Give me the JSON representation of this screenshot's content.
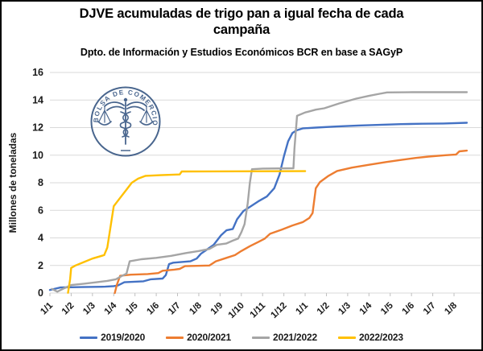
{
  "header": {
    "title": "DJVE acumuladas de trigo pan a igual fecha de cada campaña",
    "subtitle": "Dpto. de Información y Estudios Económicos BCR en base a SAGyP"
  },
  "logo": {
    "text": "BOLSA DE COMERCIO DE ROSARIO",
    "color": "#31517F"
  },
  "palette": {
    "grid": "#d9d9d9",
    "tick": "#bfbfbf",
    "axis_text": "#1a1a1a",
    "title_text": "#000000"
  },
  "chart_data": {
    "type": "line",
    "title": "DJVE acumuladas de trigo pan a igual fecha de cada campaña",
    "subtitle": "Dpto. de Información y Estudios Económicos BCR en base a SAGyP",
    "ylabel": "Millones de toneladas",
    "xlabel": "",
    "ylim": [
      0,
      16
    ],
    "yticks": [
      0,
      2,
      4,
      6,
      8,
      10,
      12,
      14,
      16
    ],
    "grid": "horizontal",
    "legend_position": "bottom",
    "x_axis_note": "x in month units: 0 = 1/1 of first year, 19 = 1/8 of second year",
    "xticklabels": [
      "1/1",
      "1/2",
      "1/3",
      "1/4",
      "1/5",
      "1/6",
      "1/7",
      "1/8",
      "1/9",
      "1/10",
      "1/11",
      "1/12",
      "1/1",
      "1/2",
      "1/3",
      "1/4",
      "1/5",
      "1/6",
      "1/7",
      "1/8"
    ],
    "series": [
      {
        "name": "2019/2020",
        "color": "#4472C4",
        "points": [
          [
            0,
            0.22
          ],
          [
            0.2,
            0.3
          ],
          [
            0.5,
            0.4
          ],
          [
            1.5,
            0.43
          ],
          [
            2.6,
            0.46
          ],
          [
            3.0,
            0.5
          ],
          [
            3.2,
            0.55
          ],
          [
            3.5,
            0.78
          ],
          [
            4.4,
            0.85
          ],
          [
            4.75,
            1.0
          ],
          [
            5.3,
            1.05
          ],
          [
            5.45,
            1.3
          ],
          [
            5.6,
            2.1
          ],
          [
            5.8,
            2.2
          ],
          [
            6.6,
            2.3
          ],
          [
            6.9,
            2.5
          ],
          [
            7.1,
            2.85
          ],
          [
            7.7,
            3.5
          ],
          [
            8.05,
            4.2
          ],
          [
            8.3,
            4.55
          ],
          [
            8.6,
            4.65
          ],
          [
            8.8,
            5.35
          ],
          [
            9.1,
            5.95
          ],
          [
            9.4,
            6.25
          ],
          [
            9.8,
            6.65
          ],
          [
            10.2,
            7.0
          ],
          [
            10.55,
            7.6
          ],
          [
            10.8,
            8.6
          ],
          [
            11.0,
            9.9
          ],
          [
            11.2,
            11.0
          ],
          [
            11.4,
            11.6
          ],
          [
            11.6,
            11.8
          ],
          [
            11.9,
            11.95
          ],
          [
            12.5,
            12.0
          ],
          [
            13.5,
            12.08
          ],
          [
            14.5,
            12.15
          ],
          [
            15.5,
            12.2
          ],
          [
            16.5,
            12.25
          ],
          [
            17.5,
            12.28
          ],
          [
            18.5,
            12.3
          ],
          [
            19.6,
            12.35
          ]
        ]
      },
      {
        "name": "2020/2021",
        "color": "#ED7D31",
        "points": [
          [
            3.05,
            0.0
          ],
          [
            3.15,
            0.6
          ],
          [
            3.3,
            1.25
          ],
          [
            3.8,
            1.33
          ],
          [
            4.6,
            1.38
          ],
          [
            5.1,
            1.45
          ],
          [
            5.3,
            1.62
          ],
          [
            5.85,
            1.7
          ],
          [
            6.1,
            1.75
          ],
          [
            6.35,
            1.95
          ],
          [
            7.5,
            2.0
          ],
          [
            7.8,
            2.3
          ],
          [
            8.3,
            2.55
          ],
          [
            8.7,
            2.75
          ],
          [
            9.0,
            3.05
          ],
          [
            9.4,
            3.4
          ],
          [
            9.8,
            3.7
          ],
          [
            10.1,
            3.95
          ],
          [
            10.35,
            4.3
          ],
          [
            10.9,
            4.6
          ],
          [
            11.4,
            4.9
          ],
          [
            11.9,
            5.15
          ],
          [
            12.2,
            5.45
          ],
          [
            12.35,
            5.8
          ],
          [
            12.5,
            7.6
          ],
          [
            12.7,
            8.05
          ],
          [
            13.1,
            8.5
          ],
          [
            13.5,
            8.85
          ],
          [
            14.2,
            9.1
          ],
          [
            15.0,
            9.3
          ],
          [
            15.8,
            9.5
          ],
          [
            16.5,
            9.65
          ],
          [
            17.2,
            9.8
          ],
          [
            17.8,
            9.9
          ],
          [
            18.6,
            10.0
          ],
          [
            19.1,
            10.05
          ],
          [
            19.25,
            10.28
          ],
          [
            19.6,
            10.33
          ]
        ]
      },
      {
        "name": "2021/2022",
        "color": "#A5A5A5",
        "points": [
          [
            0.1,
            0.3
          ],
          [
            0.35,
            0.1
          ],
          [
            0.6,
            0.3
          ],
          [
            1.0,
            0.58
          ],
          [
            1.6,
            0.68
          ],
          [
            2.2,
            0.78
          ],
          [
            2.7,
            0.88
          ],
          [
            3.1,
            1.0
          ],
          [
            3.4,
            1.25
          ],
          [
            3.6,
            1.4
          ],
          [
            3.75,
            2.3
          ],
          [
            4.3,
            2.45
          ],
          [
            5.0,
            2.55
          ],
          [
            5.7,
            2.7
          ],
          [
            6.4,
            2.9
          ],
          [
            7.0,
            3.05
          ],
          [
            7.5,
            3.2
          ],
          [
            7.85,
            3.5
          ],
          [
            8.3,
            3.6
          ],
          [
            8.6,
            3.8
          ],
          [
            8.85,
            3.95
          ],
          [
            9.0,
            4.4
          ],
          [
            9.15,
            5.0
          ],
          [
            9.3,
            6.5
          ],
          [
            9.4,
            8.0
          ],
          [
            9.5,
            8.98
          ],
          [
            10.0,
            9.03
          ],
          [
            11.45,
            9.05
          ],
          [
            11.5,
            10.5
          ],
          [
            11.62,
            12.85
          ],
          [
            12.0,
            13.1
          ],
          [
            12.5,
            13.3
          ],
          [
            12.9,
            13.4
          ],
          [
            13.6,
            13.75
          ],
          [
            14.4,
            14.1
          ],
          [
            15.0,
            14.3
          ],
          [
            15.5,
            14.45
          ],
          [
            15.85,
            14.55
          ],
          [
            17.0,
            14.57
          ],
          [
            19.6,
            14.57
          ]
        ]
      },
      {
        "name": "2022/2023",
        "color": "#FFC000",
        "points": [
          [
            0.85,
            0.02
          ],
          [
            0.95,
            1.0
          ],
          [
            1.0,
            1.82
          ],
          [
            1.2,
            2.0
          ],
          [
            1.6,
            2.25
          ],
          [
            2.0,
            2.5
          ],
          [
            2.55,
            2.75
          ],
          [
            2.7,
            3.3
          ],
          [
            2.85,
            4.8
          ],
          [
            3.0,
            6.3
          ],
          [
            3.3,
            6.9
          ],
          [
            3.6,
            7.5
          ],
          [
            3.85,
            8.0
          ],
          [
            4.15,
            8.3
          ],
          [
            4.5,
            8.5
          ],
          [
            5.2,
            8.55
          ],
          [
            6.1,
            8.6
          ],
          [
            6.2,
            8.82
          ],
          [
            12.0,
            8.84
          ]
        ]
      }
    ]
  }
}
